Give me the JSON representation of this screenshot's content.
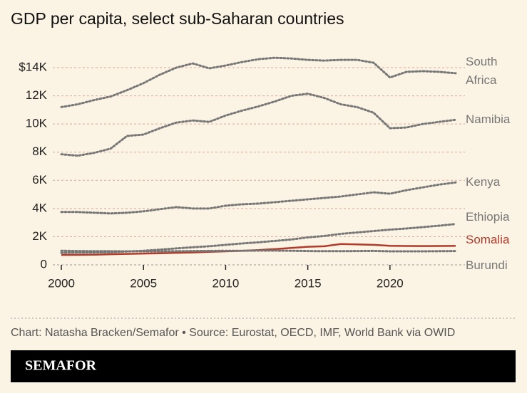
{
  "chart_data": {
    "type": "line",
    "title": "GDP per capita, select sub-Saharan countries",
    "source": "Chart: Natasha Bracken/Semafor • Source: Eurostat, OECD, IMF, World Bank via OWID",
    "brand": "SEMAFOR",
    "x": [
      2000,
      2001,
      2002,
      2003,
      2004,
      2005,
      2006,
      2007,
      2008,
      2009,
      2010,
      2011,
      2012,
      2013,
      2014,
      2015,
      2016,
      2017,
      2018,
      2019,
      2020,
      2021,
      2022,
      2023,
      2024
    ],
    "xlim": [
      2000,
      2024
    ],
    "xticks": [
      2000,
      2005,
      2010,
      2015,
      2020
    ],
    "ylim": [
      0,
      14000
    ],
    "yticks": [
      0,
      {
        "value": 2000,
        "label": "2K"
      },
      {
        "value": 4000,
        "label": "4K"
      },
      {
        "value": 6000,
        "label": "6K"
      },
      {
        "value": 8000,
        "label": "8K"
      },
      {
        "value": 10000,
        "label": "10K"
      },
      {
        "value": 12000,
        "label": "12K"
      },
      {
        "value": 14000,
        "label": "$14K"
      }
    ],
    "grid": true,
    "series": [
      {
        "name": "South Africa",
        "color": "#777777",
        "line_style": "dotted",
        "values": [
          11200,
          11400,
          11700,
          11950,
          12400,
          12900,
          13500,
          14000,
          14300,
          13950,
          14150,
          14400,
          14600,
          14700,
          14650,
          14550,
          14500,
          14550,
          14550,
          14350,
          13300,
          13700,
          13750,
          13700,
          13600
        ]
      },
      {
        "name": "Namibia",
        "color": "#777777",
        "line_style": "dotted",
        "values": [
          7850,
          7750,
          7950,
          8250,
          9150,
          9250,
          9700,
          10100,
          10250,
          10150,
          10600,
          10950,
          11250,
          11600,
          12000,
          12150,
          11850,
          11400,
          11200,
          10800,
          9700,
          9750,
          10000,
          10150,
          10300
        ]
      },
      {
        "name": "Kenya",
        "color": "#777777",
        "line_style": "dotted",
        "values": [
          3750,
          3750,
          3700,
          3650,
          3700,
          3800,
          3950,
          4100,
          4000,
          4000,
          4200,
          4300,
          4350,
          4450,
          4550,
          4650,
          4750,
          4850,
          5000,
          5150,
          5050,
          5300,
          5500,
          5700,
          5850
        ]
      },
      {
        "name": "Ethiopia",
        "color": "#777777",
        "line_style": "dotted",
        "values": [
          850,
          870,
          880,
          900,
          950,
          1000,
          1080,
          1170,
          1250,
          1320,
          1420,
          1520,
          1600,
          1700,
          1800,
          1950,
          2050,
          2200,
          2300,
          2400,
          2500,
          2580,
          2680,
          2780,
          2900
        ]
      },
      {
        "name": "Somalia",
        "color": "#b23a2a",
        "line_style": "solid",
        "values": [
          700,
          710,
          720,
          750,
          780,
          800,
          820,
          850,
          880,
          920,
          960,
          1000,
          1050,
          1120,
          1200,
          1280,
          1320,
          1480,
          1450,
          1420,
          1350,
          1340,
          1330,
          1340,
          1350
        ]
      },
      {
        "name": "Burundi",
        "color": "#777777",
        "line_style": "dotted",
        "values": [
          1000,
          980,
          970,
          970,
          960,
          960,
          960,
          970,
          980,
          990,
          1000,
          1000,
          1010,
          1010,
          1000,
          980,
          970,
          970,
          980,
          990,
          960,
          960,
          960,
          970,
          980
        ]
      }
    ]
  }
}
